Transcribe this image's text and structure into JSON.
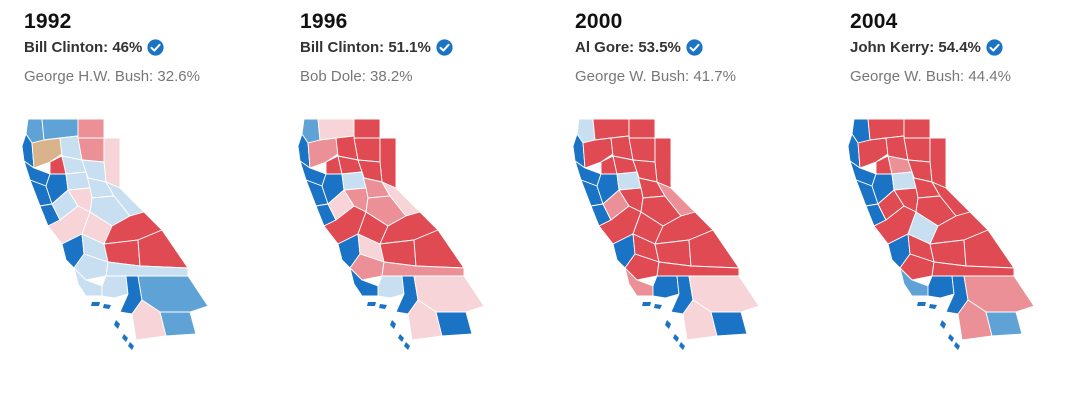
{
  "colors": {
    "dem_strong": "#1a73c4",
    "dem_mid": "#5fa3d6",
    "dem_light": "#c8dff1",
    "rep_light": "#f6d4d8",
    "rep_mid": "#ea9096",
    "rep_strong": "#e04a52",
    "other": "#d9b38c",
    "check": "#1a73c4"
  },
  "elections": [
    {
      "year": "1992",
      "winner": "Bill Clinton: 46%",
      "runner_up": "George H.W. Bush: 32.6%",
      "county_shades": [
        "dem_mid",
        "dem_mid",
        "rep_mid",
        "dem_strong",
        "other",
        "dem_light",
        "rep_mid",
        "rep_light",
        "dem_strong",
        "rep_strong",
        "dem_light",
        "dem_light",
        "dem_strong",
        "dem_strong",
        "dem_light",
        "dem_light",
        "dem_strong",
        "dem_light",
        "rep_light",
        "dem_light",
        "dem_light",
        "rep_light",
        "rep_light",
        "dem_strong",
        "dem_light",
        "rep_strong",
        "rep_strong",
        "dem_light",
        "rep_strong",
        "dem_light",
        "dem_light",
        "dem_strong",
        "dem_light",
        "dem_mid",
        "rep_light",
        "dem_mid"
      ]
    },
    {
      "year": "1996",
      "winner": "Bill Clinton: 51.1%",
      "runner_up": "Bob Dole: 38.2%",
      "county_shades": [
        "dem_mid",
        "rep_light",
        "rep_strong",
        "dem_strong",
        "rep_mid",
        "rep_strong",
        "rep_strong",
        "rep_strong",
        "dem_strong",
        "rep_strong",
        "rep_strong",
        "rep_strong",
        "dem_strong",
        "dem_strong",
        "dem_light",
        "rep_mid",
        "dem_strong",
        "rep_light",
        "rep_mid",
        "rep_mid",
        "rep_light",
        "rep_strong",
        "rep_strong",
        "dem_strong",
        "rep_light",
        "rep_strong",
        "rep_strong",
        "rep_mid",
        "rep_strong",
        "dem_strong",
        "dem_light",
        "dem_strong",
        "rep_mid",
        "rep_light",
        "rep_light",
        "dem_strong"
      ]
    },
    {
      "year": "2000",
      "winner": "Al Gore: 53.5%",
      "runner_up": "George W. Bush: 41.7%",
      "county_shades": [
        "dem_light",
        "rep_strong",
        "rep_strong",
        "dem_strong",
        "rep_strong",
        "rep_strong",
        "rep_strong",
        "rep_strong",
        "dem_strong",
        "rep_strong",
        "rep_strong",
        "rep_strong",
        "dem_strong",
        "dem_strong",
        "dem_light",
        "rep_strong",
        "dem_strong",
        "rep_mid",
        "rep_strong",
        "rep_strong",
        "rep_mid",
        "rep_strong",
        "rep_strong",
        "dem_strong",
        "rep_strong",
        "rep_strong",
        "rep_strong",
        "rep_strong",
        "rep_strong",
        "rep_mid",
        "dem_strong",
        "dem_strong",
        "rep_strong",
        "rep_light",
        "rep_light",
        "dem_strong"
      ]
    },
    {
      "year": "2004",
      "winner": "John Kerry: 54.4%",
      "runner_up": "George W. Bush: 44.4%",
      "county_shades": [
        "dem_strong",
        "rep_strong",
        "rep_strong",
        "dem_strong",
        "rep_strong",
        "rep_strong",
        "rep_strong",
        "rep_strong",
        "dem_strong",
        "rep_strong",
        "rep_mid",
        "rep_strong",
        "dem_strong",
        "dem_strong",
        "dem_light",
        "rep_strong",
        "dem_strong",
        "rep_strong",
        "rep_strong",
        "rep_strong",
        "rep_strong",
        "rep_strong",
        "dem_light",
        "dem_strong",
        "rep_strong",
        "rep_strong",
        "rep_strong",
        "rep_strong",
        "rep_strong",
        "dem_mid",
        "dem_strong",
        "dem_strong",
        "rep_strong",
        "rep_mid",
        "rep_mid",
        "dem_mid"
      ]
    }
  ]
}
